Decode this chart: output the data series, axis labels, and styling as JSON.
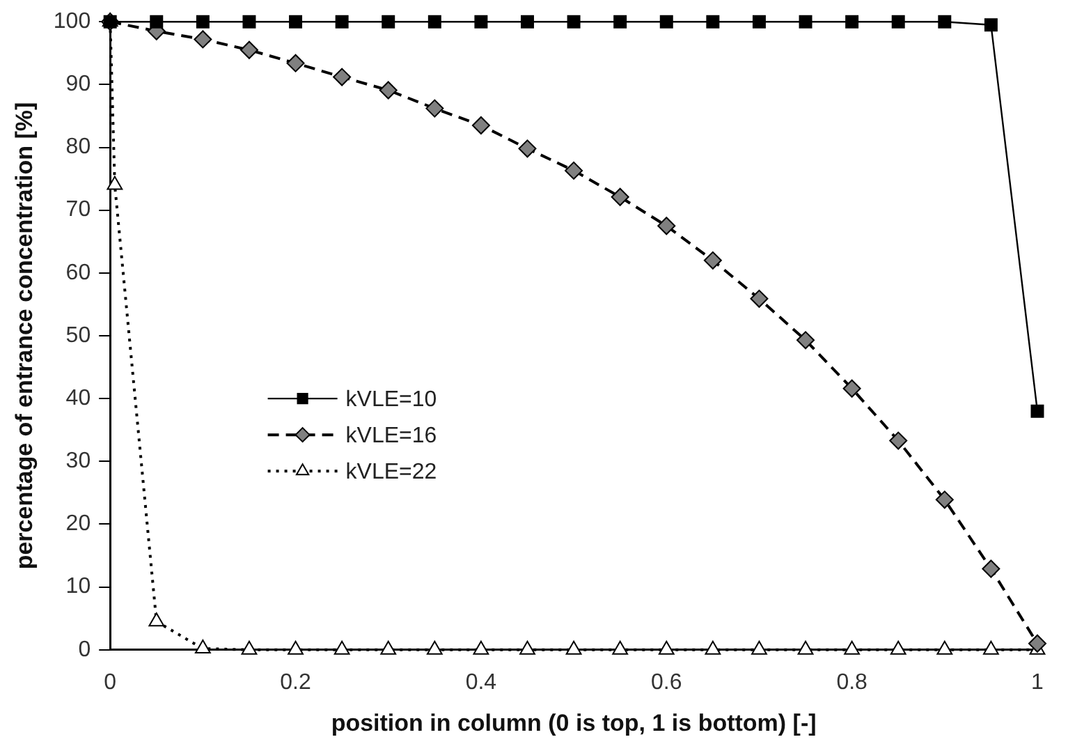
{
  "chart_data": {
    "type": "line",
    "xlabel": "position in column (0 is top, 1 is bottom) [-]",
    "ylabel": "percentage of entrance concentration [%]",
    "xlim": [
      0,
      1
    ],
    "xticks": [
      0,
      0.2,
      0.4,
      0.6,
      0.8,
      1
    ],
    "ylim": [
      0,
      100
    ],
    "yticks": [
      0,
      10,
      20,
      30,
      40,
      50,
      60,
      70,
      80,
      90,
      100
    ],
    "grid": false,
    "legend": "left",
    "series": [
      {
        "name": "kVLE=10",
        "color": "#000000",
        "marker": "square",
        "line_style": "solid",
        "x": [
          0,
          0.05,
          0.1,
          0.15,
          0.2,
          0.25,
          0.3,
          0.35,
          0.4,
          0.45,
          0.5,
          0.55,
          0.6,
          0.65,
          0.7,
          0.75,
          0.8,
          0.85,
          0.9,
          0.95,
          1
        ],
        "values": [
          100,
          100,
          100,
          100,
          100,
          100,
          100,
          100,
          100,
          100,
          100,
          100,
          100,
          100,
          100,
          100,
          100,
          100,
          100,
          99.5,
          38
        ]
      },
      {
        "name": "kVLE=16",
        "color": "#808080",
        "marker": "diamond",
        "line_style": "dashed",
        "x": [
          0,
          0.05,
          0.1,
          0.15,
          0.2,
          0.25,
          0.3,
          0.35,
          0.4,
          0.45,
          0.5,
          0.55,
          0.6,
          0.65,
          0.7,
          0.75,
          0.8,
          0.85,
          0.9,
          0.95,
          1
        ],
        "values": [
          100,
          98.5,
          97.2,
          95.5,
          93.4,
          91.2,
          89.1,
          86.2,
          83.5,
          79.8,
          76.3,
          72.1,
          67.5,
          62,
          55.9,
          49.3,
          41.6,
          33.3,
          23.9,
          12.9,
          1
        ]
      },
      {
        "name": "kVLE=22",
        "color": "#ffffff",
        "marker": "triangle",
        "line_style": "dotted",
        "x": [
          0,
          0.005,
          0.05,
          0.1,
          0.15,
          0.2,
          0.25,
          0.3,
          0.35,
          0.4,
          0.45,
          0.5,
          0.55,
          0.6,
          0.65,
          0.7,
          0.75,
          0.8,
          0.85,
          0.9,
          0.95,
          1
        ],
        "values": [
          100,
          74,
          4.5,
          0.2,
          0,
          0,
          0,
          0,
          0,
          0,
          0,
          0,
          0,
          0,
          0,
          0,
          0,
          0,
          0,
          0,
          0,
          0
        ]
      }
    ]
  }
}
